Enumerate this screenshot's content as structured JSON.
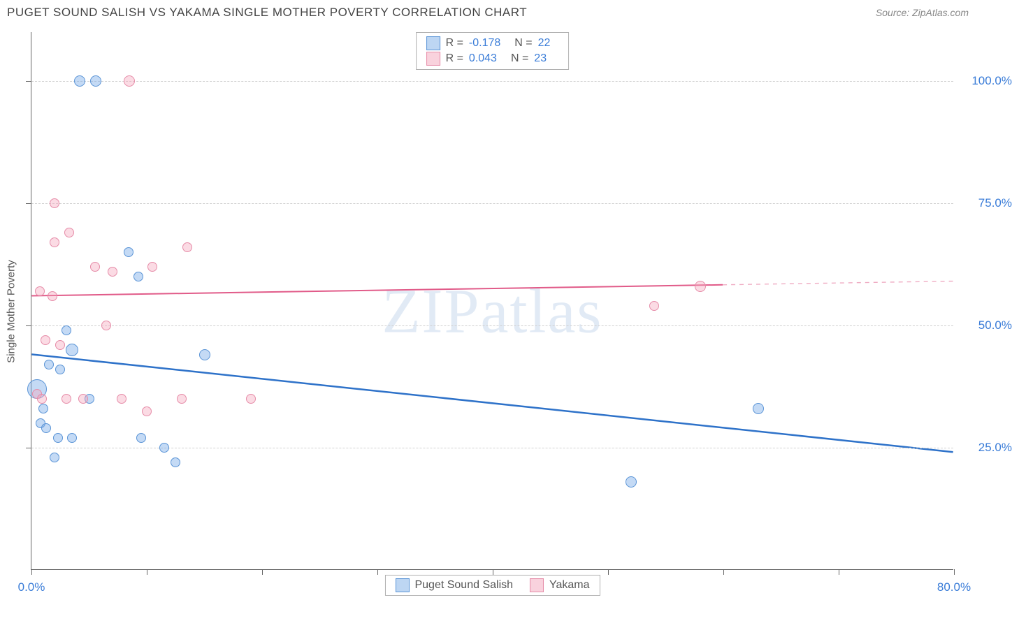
{
  "header": {
    "title": "PUGET SOUND SALISH VS YAKAMA SINGLE MOTHER POVERTY CORRELATION CHART",
    "source": "Source: ZipAtlas.com"
  },
  "chart": {
    "type": "scatter",
    "y_axis_title": "Single Mother Poverty",
    "xlim": [
      0,
      80
    ],
    "ylim": [
      0,
      110
    ],
    "x_ticks": [
      0,
      10,
      20,
      30,
      40,
      50,
      60,
      70,
      80
    ],
    "x_tick_labels": {
      "0": "0.0%",
      "80": "80.0%"
    },
    "y_gridlines": [
      25,
      50,
      75,
      100
    ],
    "y_tick_labels": {
      "25": "25.0%",
      "50": "50.0%",
      "75": "75.0%",
      "100": "100.0%"
    },
    "background_color": "#ffffff",
    "grid_color": "#d0d0d0",
    "axis_color": "#666666",
    "label_color_blue": "#3b7dd8",
    "watermark_text": "ZIPatlas",
    "stats": [
      {
        "swatch": "blue",
        "r": "-0.178",
        "n": "22"
      },
      {
        "swatch": "pink",
        "r": "0.043",
        "n": "23"
      }
    ],
    "legend": [
      {
        "swatch": "blue",
        "label": "Puget Sound Salish"
      },
      {
        "swatch": "pink",
        "label": "Yakama"
      }
    ],
    "series": [
      {
        "name": "Puget Sound Salish",
        "color_fill": "rgba(124,173,232,0.45)",
        "color_stroke": "#5a94d6",
        "marker_class": "point-blue",
        "trend": {
          "x1": 0,
          "y1": 44,
          "x2": 80,
          "y2": 24,
          "solid_until_x": 80,
          "color": "#2e72c9",
          "width": 2.5
        },
        "points": [
          {
            "x": 4.2,
            "y": 100,
            "r": 8
          },
          {
            "x": 5.6,
            "y": 100,
            "r": 8
          },
          {
            "x": 8.4,
            "y": 65,
            "r": 7
          },
          {
            "x": 9.3,
            "y": 60,
            "r": 7
          },
          {
            "x": 3.0,
            "y": 49,
            "r": 7
          },
          {
            "x": 3.5,
            "y": 45,
            "r": 9
          },
          {
            "x": 15.0,
            "y": 44,
            "r": 8
          },
          {
            "x": 1.5,
            "y": 42,
            "r": 7
          },
          {
            "x": 2.5,
            "y": 41,
            "r": 7
          },
          {
            "x": 0.5,
            "y": 37,
            "r": 14
          },
          {
            "x": 0.8,
            "y": 30,
            "r": 7
          },
          {
            "x": 1.3,
            "y": 29,
            "r": 7
          },
          {
            "x": 2.3,
            "y": 27,
            "r": 7
          },
          {
            "x": 3.5,
            "y": 27,
            "r": 7
          },
          {
            "x": 9.5,
            "y": 27,
            "r": 7
          },
          {
            "x": 11.5,
            "y": 25,
            "r": 7
          },
          {
            "x": 2.0,
            "y": 23,
            "r": 7
          },
          {
            "x": 12.5,
            "y": 22,
            "r": 7
          },
          {
            "x": 63.0,
            "y": 33,
            "r": 8
          },
          {
            "x": 52.0,
            "y": 18,
            "r": 8
          },
          {
            "x": 5.0,
            "y": 35,
            "r": 7
          },
          {
            "x": 1.0,
            "y": 33,
            "r": 7
          }
        ]
      },
      {
        "name": "Yakama",
        "color_fill": "rgba(244,166,188,0.4)",
        "color_stroke": "#e68ca8",
        "marker_class": "point-pink",
        "trend": {
          "x1": 0,
          "y1": 56,
          "x2": 80,
          "y2": 59,
          "solid_until_x": 60,
          "color": "#e15b89",
          "width": 2
        },
        "points": [
          {
            "x": 8.5,
            "y": 100,
            "r": 8
          },
          {
            "x": 2.0,
            "y": 75,
            "r": 7
          },
          {
            "x": 3.3,
            "y": 69,
            "r": 7
          },
          {
            "x": 2.0,
            "y": 67,
            "r": 7
          },
          {
            "x": 13.5,
            "y": 66,
            "r": 7
          },
          {
            "x": 5.5,
            "y": 62,
            "r": 7
          },
          {
            "x": 7.0,
            "y": 61,
            "r": 7
          },
          {
            "x": 10.5,
            "y": 62,
            "r": 7
          },
          {
            "x": 0.7,
            "y": 57,
            "r": 7
          },
          {
            "x": 1.8,
            "y": 56,
            "r": 7
          },
          {
            "x": 58.0,
            "y": 58,
            "r": 8
          },
          {
            "x": 54.0,
            "y": 54,
            "r": 7
          },
          {
            "x": 6.5,
            "y": 50,
            "r": 7
          },
          {
            "x": 1.2,
            "y": 47,
            "r": 7
          },
          {
            "x": 2.5,
            "y": 46,
            "r": 7
          },
          {
            "x": 0.5,
            "y": 36,
            "r": 7
          },
          {
            "x": 0.9,
            "y": 35,
            "r": 7
          },
          {
            "x": 3.0,
            "y": 35,
            "r": 7
          },
          {
            "x": 4.5,
            "y": 35,
            "r": 7
          },
          {
            "x": 7.8,
            "y": 35,
            "r": 7
          },
          {
            "x": 13.0,
            "y": 35,
            "r": 7
          },
          {
            "x": 19.0,
            "y": 35,
            "r": 7
          },
          {
            "x": 10.0,
            "y": 32.5,
            "r": 7
          }
        ]
      }
    ]
  }
}
